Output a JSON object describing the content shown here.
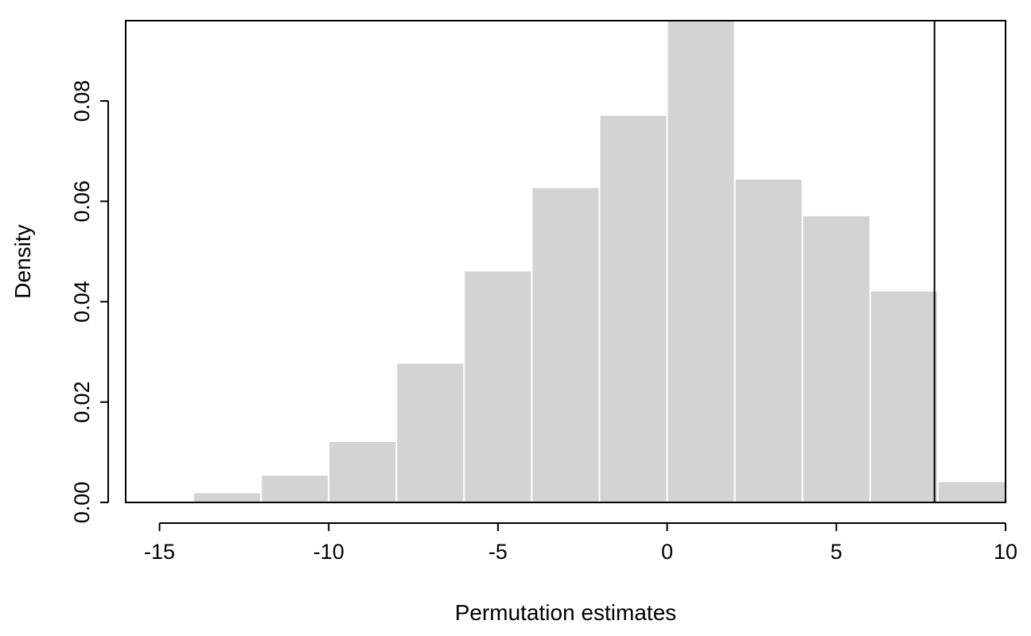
{
  "chart_data": {
    "type": "bar",
    "subtype": "histogram",
    "xlabel": "Permutation estimates",
    "ylabel": "Density",
    "xlim": [
      -16,
      10
    ],
    "ylim": [
      0,
      0.096
    ],
    "x_ticks": [
      -15,
      -10,
      -5,
      0,
      5,
      10
    ],
    "x_tick_labels": [
      "-15",
      "-10",
      "-5",
      "0",
      "5",
      "10"
    ],
    "y_ticks": [
      0,
      0.02,
      0.04,
      0.06,
      0.08
    ],
    "y_tick_labels": [
      "0.00",
      "0.02",
      "0.04",
      "0.06",
      "0.08"
    ],
    "bins": [
      {
        "from": -16,
        "to": -14,
        "density": 0.0
      },
      {
        "from": -14,
        "to": -12,
        "density": 0.002
      },
      {
        "from": -12,
        "to": -10,
        "density": 0.0055
      },
      {
        "from": -10,
        "to": -8,
        "density": 0.0122
      },
      {
        "from": -8,
        "to": -6,
        "density": 0.0278
      },
      {
        "from": -6,
        "to": -4,
        "density": 0.0462
      },
      {
        "from": -4,
        "to": -2,
        "density": 0.0628
      },
      {
        "from": -2,
        "to": 0,
        "density": 0.0772
      },
      {
        "from": 0,
        "to": 2,
        "density": 0.0965
      },
      {
        "from": 2,
        "to": 4,
        "density": 0.0645
      },
      {
        "from": 4,
        "to": 6,
        "density": 0.0572
      },
      {
        "from": 6,
        "to": 8,
        "density": 0.0422
      },
      {
        "from": 8,
        "to": 10,
        "density": 0.0042
      }
    ],
    "reference_line_x": 7.9,
    "bar_color": "#d3d3d3",
    "bar_border_color": "#ffffff",
    "grid": false,
    "legend": "none"
  }
}
